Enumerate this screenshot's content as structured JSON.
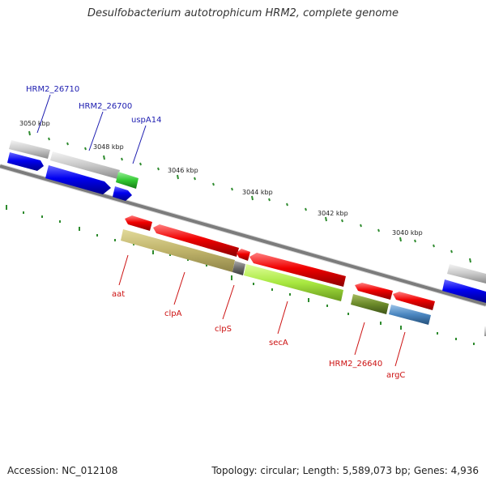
{
  "title": "Desulfobacterium autotrophicum HRM2, complete genome",
  "footer": {
    "accession": "Accession: NC_012108",
    "topology": "Topology: circular; Length: 5,589,073 bp; Genes: 4,936"
  },
  "scale_labels": [
    "3050 kbp",
    "3048 kbp",
    "3046 kbp",
    "3044 kbp",
    "3042 kbp",
    "3040 kbp"
  ],
  "genes_top": [
    "HRM2_26710",
    "HRM2_26700",
    "uspA14"
  ],
  "genes_bottom": [
    "aat",
    "clpA",
    "clpS",
    "secA",
    "HRM2_26640",
    "argC"
  ],
  "colors": {
    "backbone": "#808080",
    "tick": "#2e8b2e",
    "forward_cds": "#0000ee",
    "reverse_cds": "#ee0000",
    "label_forward": "#1c1cb0",
    "label_reverse": "#cc1111"
  }
}
